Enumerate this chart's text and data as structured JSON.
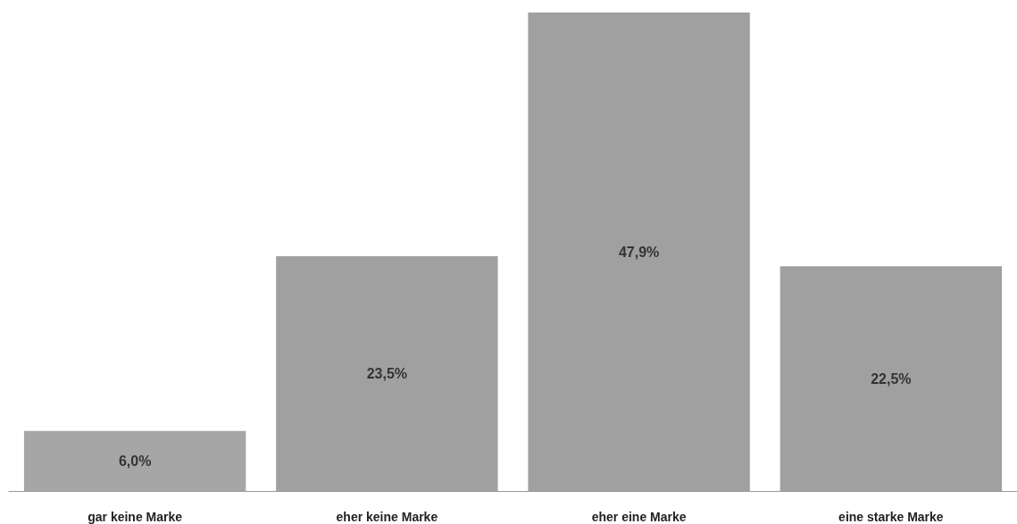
{
  "chart_data": {
    "type": "bar",
    "categories": [
      "gar keine Marke",
      "eher keine Marke",
      "eher eine Marke",
      "eine starke Marke"
    ],
    "values": [
      6.0,
      23.5,
      47.9,
      22.5
    ],
    "value_labels": [
      "6,0%",
      "23,5%",
      "47,9%",
      "22,5%"
    ],
    "colors": [
      "#a6a6a6",
      "#a0a0a0",
      "#a0a0a0",
      "#a0a0a0"
    ]
  }
}
